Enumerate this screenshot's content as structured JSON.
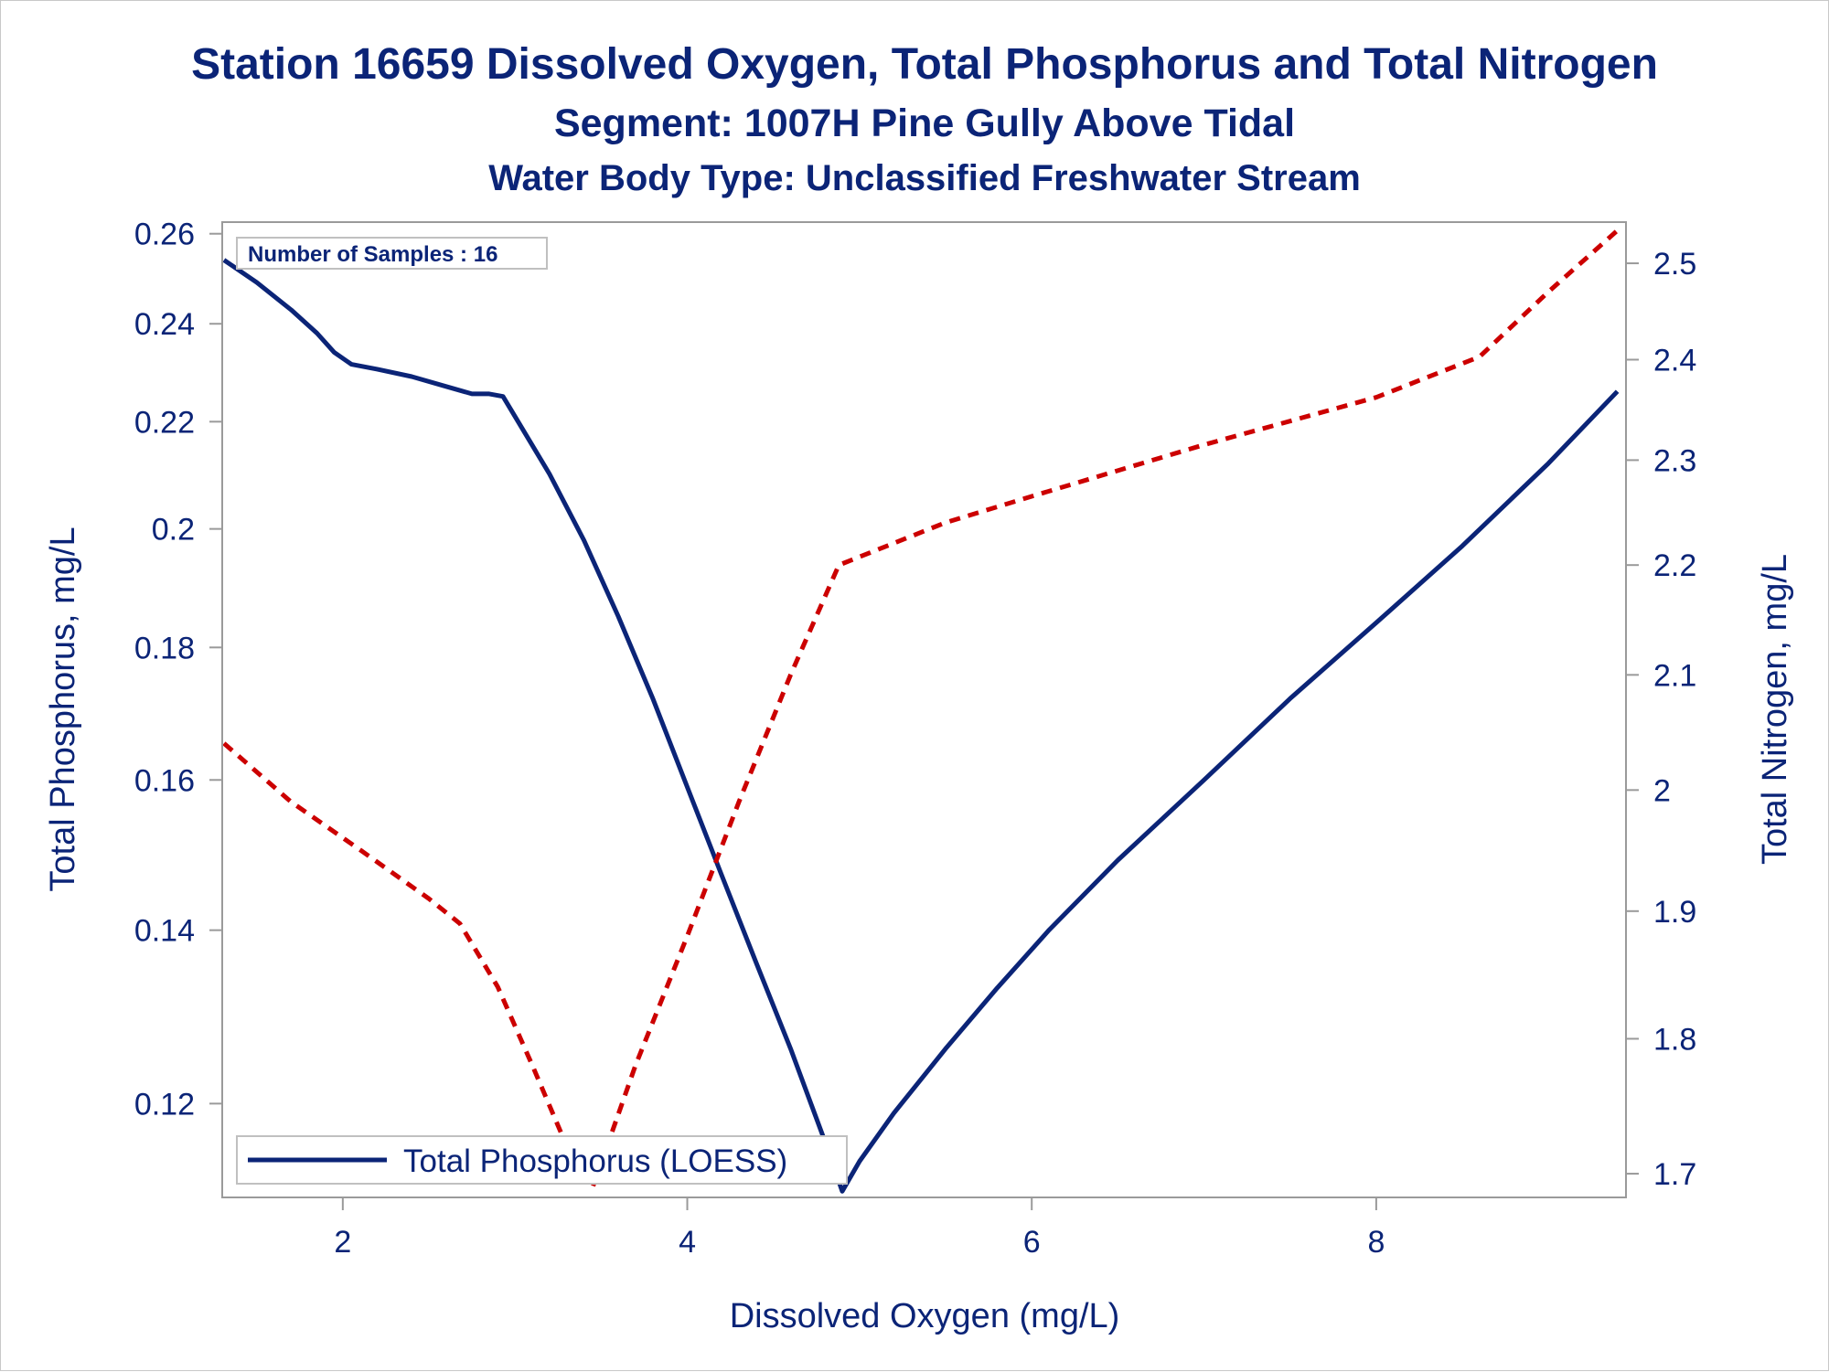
{
  "colors": {
    "text": "#0b2477",
    "phosphorus_line": "#0b2477",
    "nitrogen_line": "#cc0000",
    "frame": "#9a9a9a"
  },
  "chart_data": {
    "type": "line",
    "title": "Station 16659  Dissolved Oxygen, Total Phosphorus and Total Nitrogen",
    "subtitle": "Segment: 1007H  Pine Gully Above Tidal",
    "subtitle2": "Water Body Type: Unclassified Freshwater Stream",
    "xlabel": "Dissolved Oxygen (mg/L)",
    "ylabel": "Total Phosphorus, mg/L",
    "y2label": "Total Nitrogen, mg/L",
    "xlim": [
      1.3,
      9.45
    ],
    "ylim": [
      0.1104,
      0.2627
    ],
    "y_scale": "log",
    "y2lim": [
      1.683,
      2.544
    ],
    "y2_scale": "log",
    "x_ticks": [
      2,
      4,
      6,
      8
    ],
    "y_ticks": [
      0.12,
      0.14,
      0.16,
      0.18,
      0.2,
      0.22,
      0.24,
      0.26
    ],
    "y_tick_labels": [
      "0.12",
      "0.14",
      "0.16",
      "0.18",
      "0.2",
      "0.22",
      "0.24",
      "0.26"
    ],
    "y2_ticks": [
      1.7,
      1.8,
      1.9,
      2.0,
      2.1,
      2.2,
      2.3,
      2.4,
      2.5
    ],
    "y2_tick_labels": [
      "1.7",
      "1.8",
      "1.9",
      "2",
      "2.1",
      "2.2",
      "2.3",
      "2.4",
      "2.5"
    ],
    "grid": false,
    "legend_position": "bottom-left",
    "annotation": "Number of Samples : 16",
    "series": [
      {
        "name": "Total Phosphorus (LOESS)",
        "axis": "left",
        "style": "solid",
        "points": [
          [
            1.31,
            0.254
          ],
          [
            1.5,
            0.249
          ],
          [
            1.7,
            0.243
          ],
          [
            1.85,
            0.238
          ],
          [
            1.95,
            0.234
          ],
          [
            2.05,
            0.2315
          ],
          [
            2.2,
            0.2305
          ],
          [
            2.4,
            0.229
          ],
          [
            2.6,
            0.227
          ],
          [
            2.75,
            0.2255
          ],
          [
            2.85,
            0.2255
          ],
          [
            2.93,
            0.225
          ],
          [
            3.0,
            0.221
          ],
          [
            3.2,
            0.21
          ],
          [
            3.4,
            0.198
          ],
          [
            3.6,
            0.185
          ],
          [
            3.8,
            0.172
          ],
          [
            4.0,
            0.159
          ],
          [
            4.2,
            0.147
          ],
          [
            4.4,
            0.136
          ],
          [
            4.6,
            0.126
          ],
          [
            4.8,
            0.116
          ],
          [
            4.9,
            0.111
          ],
          [
            5.0,
            0.114
          ],
          [
            5.2,
            0.119
          ],
          [
            5.5,
            0.126
          ],
          [
            5.8,
            0.133
          ],
          [
            6.1,
            0.14
          ],
          [
            6.5,
            0.149
          ],
          [
            7.0,
            0.16
          ],
          [
            7.5,
            0.172
          ],
          [
            8.0,
            0.184
          ],
          [
            8.5,
            0.197
          ],
          [
            9.0,
            0.212
          ],
          [
            9.4,
            0.226
          ]
        ]
      },
      {
        "name": "",
        "axis": "right",
        "style": "dashed",
        "points": [
          [
            1.31,
            2.04
          ],
          [
            1.7,
            1.99
          ],
          [
            2.1,
            1.95
          ],
          [
            2.5,
            1.91
          ],
          [
            2.68,
            1.89
          ],
          [
            2.9,
            1.84
          ],
          [
            3.1,
            1.78
          ],
          [
            3.3,
            1.72
          ],
          [
            3.45,
            1.69
          ],
          [
            3.7,
            1.78
          ],
          [
            4.0,
            1.88
          ],
          [
            4.3,
            1.99
          ],
          [
            4.6,
            2.1
          ],
          [
            4.88,
            2.2
          ],
          [
            5.5,
            2.24
          ],
          [
            6.0,
            2.265
          ],
          [
            7.0,
            2.315
          ],
          [
            8.0,
            2.362
          ],
          [
            8.6,
            2.403
          ],
          [
            9.0,
            2.47
          ],
          [
            9.4,
            2.535
          ]
        ]
      }
    ]
  }
}
